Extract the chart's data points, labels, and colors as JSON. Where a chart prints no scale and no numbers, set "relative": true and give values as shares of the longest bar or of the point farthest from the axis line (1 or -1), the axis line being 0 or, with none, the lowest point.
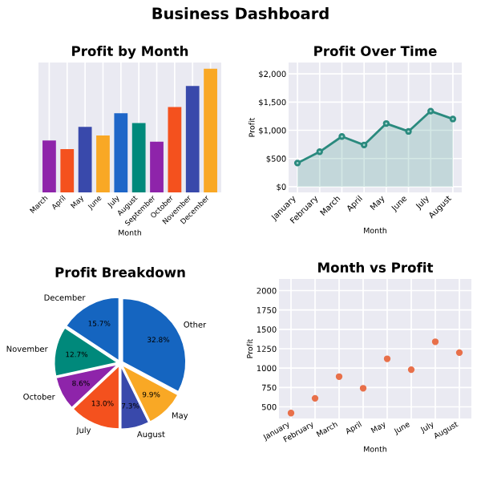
{
  "chart_data": [
    {
      "type": "other",
      "title": "Business Dashboard"
    },
    {
      "type": "bar",
      "title": "Profit by Month",
      "xlabel": "Month",
      "relative": true,
      "grid": "x",
      "categories": [
        "March",
        "April",
        "May",
        "June",
        "July",
        "August",
        "September",
        "October",
        "November",
        "December"
      ],
      "values": [
        0.42,
        0.35,
        0.53,
        0.46,
        0.64,
        0.56,
        0.41,
        0.69,
        0.86,
        1
      ],
      "colors": [
        "#8e24aa",
        "#f4511e",
        "#3949ab",
        "#f9a825",
        "#1e66c8",
        "#00897b",
        "#8e24aa",
        "#f4511e",
        "#3949ab",
        "#f9a825"
      ]
    },
    {
      "type": "area",
      "title": "Profit Over Time",
      "xlabel": "Month",
      "ylabel": "Profit",
      "grid": true,
      "marker": "circle",
      "categories": [
        "January",
        "February",
        "March",
        "April",
        "May",
        "June",
        "July",
        "August"
      ],
      "series": [
        {
          "color": "#2a8a7e",
          "values": [
            420,
            620,
            890,
            740,
            1120,
            980,
            1340,
            1200
          ]
        }
      ],
      "ylim": [
        -100,
        2200
      ],
      "yticks": [
        {
          "value": 0,
          "label": "$0"
        },
        {
          "value": 500,
          "label": "$500"
        },
        {
          "value": 1000,
          "label": "$1,000"
        },
        {
          "value": 1500,
          "label": "$1,500"
        },
        {
          "value": 2000,
          "label": "$2,000"
        }
      ]
    },
    {
      "type": "pie",
      "title": "Profit Breakdown",
      "value_labels": [
        "32.8%",
        "9.9%",
        "7.3%",
        "13.0%",
        "8.6%",
        "12.7%",
        "15.7%"
      ],
      "categories": [
        "Other",
        "May",
        "August",
        "July",
        "October",
        "November",
        "December"
      ],
      "values": [
        32.8,
        9.9,
        7.3,
        13.0,
        8.6,
        12.7,
        15.7
      ],
      "colors": [
        "#1565c0",
        "#f9a825",
        "#3949ab",
        "#f4511e",
        "#8e24aa",
        "#00897b",
        "#1565c0"
      ]
    },
    {
      "type": "scatter",
      "title": "Month vs Profit",
      "xlabel": "Month",
      "ylabel": "Profit",
      "grid": true,
      "marker": "circle",
      "categories": [
        "January",
        "February",
        "March",
        "April",
        "May",
        "June",
        "July",
        "August"
      ],
      "series": [
        {
          "color": "#e8704a",
          "values": [
            420,
            610,
            890,
            740,
            1120,
            980,
            1340,
            1200
          ]
        }
      ],
      "ylim": [
        350,
        2150
      ],
      "yticks": [
        500,
        750,
        1000,
        1250,
        1500,
        1750,
        2000
      ]
    }
  ]
}
